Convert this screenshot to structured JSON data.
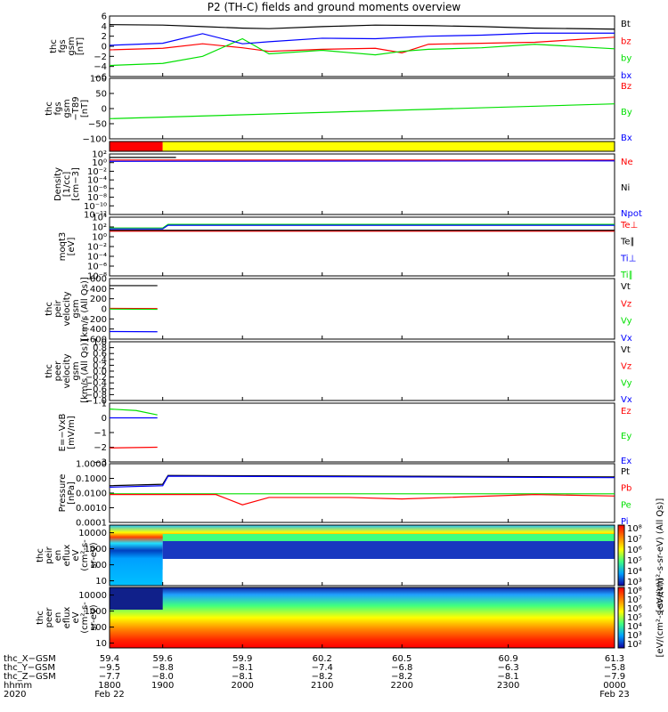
{
  "title": "P2 (TH-C) fields and ground moments overview",
  "colors": {
    "black": "#000000",
    "red": "#ff0000",
    "green": "#00e000",
    "blue": "#0000ff",
    "yellow": "#ffff00"
  },
  "chart_data": [
    {
      "type": "line",
      "panel": "fgs",
      "ylabel": [
        "thc",
        "fgs",
        "gsm",
        "[nT]"
      ],
      "ylim": [
        -6,
        6
      ],
      "yticks": [
        "6",
        "4",
        "2",
        "0",
        "−2",
        "−4",
        "−6"
      ],
      "legend": [
        {
          "name": "Bt",
          "color": "#000000"
        },
        {
          "name": "bz",
          "color": "#ff0000"
        },
        {
          "name": "by",
          "color": "#00e000"
        },
        {
          "name": "bx",
          "color": "#0000ff"
        }
      ],
      "series": [
        {
          "name": "Bt",
          "color": "#000000",
          "x": [
            59.4,
            59.6,
            59.75,
            59.9,
            60.0,
            60.2,
            60.4,
            60.6,
            60.8,
            61.0,
            61.3
          ],
          "y": [
            4.3,
            4.2,
            3.9,
            3.6,
            3.5,
            3.9,
            4.2,
            4.1,
            3.9,
            3.6,
            3.4
          ]
        },
        {
          "name": "bz",
          "color": "#ff0000",
          "x": [
            59.4,
            59.6,
            59.75,
            59.9,
            60.0,
            60.2,
            60.4,
            60.5,
            60.6,
            60.8,
            61.0,
            61.3
          ],
          "y": [
            -0.7,
            -0.4,
            0.5,
            -0.3,
            -1.0,
            -0.6,
            -0.4,
            -1.3,
            0.4,
            0.6,
            0.8,
            1.8
          ]
        },
        {
          "name": "by",
          "color": "#00e000",
          "x": [
            59.4,
            59.6,
            59.75,
            59.9,
            60.0,
            60.2,
            60.4,
            60.5,
            60.6,
            60.8,
            61.0,
            61.3
          ],
          "y": [
            -3.8,
            -3.4,
            -2.0,
            1.5,
            -1.5,
            -0.8,
            -1.7,
            -1.0,
            -0.6,
            -0.3,
            0.4,
            -0.5
          ]
        },
        {
          "name": "bx",
          "color": "#0000ff",
          "x": [
            59.4,
            59.6,
            59.75,
            59.9,
            60.0,
            60.2,
            60.4,
            60.6,
            60.8,
            61.0,
            61.3
          ],
          "y": [
            0.2,
            0.6,
            2.5,
            0.5,
            0.9,
            1.6,
            1.5,
            2.0,
            2.2,
            2.6,
            2.6
          ]
        }
      ]
    },
    {
      "type": "line",
      "panel": "fgs-t89",
      "ylabel": [
        "thc",
        "fgs",
        "gsm",
        "−T89",
        "[nT]"
      ],
      "ylim": [
        -125,
        100
      ],
      "yticks": [
        "100",
        "50",
        "0",
        "−50",
        "−100"
      ],
      "legend": [
        {
          "name": "Bz",
          "color": "#ff0000"
        },
        {
          "name": "By",
          "color": "#00e000"
        },
        {
          "name": "Bx",
          "color": "#0000ff"
        }
      ],
      "series": [
        {
          "name": "By",
          "color": "#00e000",
          "x": [
            59.4,
            61.3
          ],
          "y": [
            -50,
            5
          ]
        }
      ]
    },
    {
      "type": "bar",
      "panel": "mode-bar",
      "segments": [
        {
          "x0": 59.4,
          "x1": 59.6,
          "color": "#ff0000"
        },
        {
          "x0": 59.6,
          "x1": 61.3,
          "color": "#ffff00"
        }
      ]
    },
    {
      "type": "line",
      "panel": "density",
      "ylabel": [
        "Density",
        "[1/cc]",
        "[cm−3]"
      ],
      "ylim": [
        -12,
        2
      ],
      "yscale": "log",
      "yticks": [
        "10²",
        "10⁰",
        "10⁻²",
        "10⁻⁴",
        "10⁻⁶",
        "10⁻⁸",
        "10⁻¹⁰",
        "10⁻¹²"
      ],
      "legend": [
        {
          "name": "Ne",
          "color": "#ff0000"
        },
        {
          "name": "Ni",
          "color": "#000000"
        },
        {
          "name": "Npot",
          "color": "#0000ff"
        }
      ],
      "series": [
        {
          "name": "Ne",
          "color": "#ff0000",
          "x": [
            59.4,
            61.3
          ],
          "y": [
            0.6,
            0.6
          ]
        },
        {
          "name": "Npot",
          "color": "#0000ff",
          "x": [
            59.4,
            61.3
          ],
          "y": [
            0.3,
            0.4
          ]
        },
        {
          "name": "Ni",
          "color": "#000000",
          "x": [
            59.4,
            59.65
          ],
          "y": [
            1.2,
            1.2
          ]
        }
      ]
    },
    {
      "type": "line",
      "panel": "temperature",
      "ylabel": [
        "moqt3",
        "[eV]"
      ],
      "ylim": [
        -8,
        5
      ],
      "yscale": "log",
      "yticks": [
        "10⁴",
        "10²",
        "10⁰",
        "10⁻²",
        "10⁻⁴",
        "10⁻⁶",
        "10⁻⁸"
      ],
      "legend": [
        {
          "name": "Te⊥",
          "color": "#ff0000"
        },
        {
          "name": "Te∥",
          "color": "#000000"
        },
        {
          "name": "Ti⊥",
          "color": "#0000ff"
        },
        {
          "name": "Ti∥",
          "color": "#00e000"
        }
      ],
      "series": [
        {
          "name": "Ti∥",
          "color": "#00e000",
          "x": [
            59.4,
            59.6,
            59.62,
            61.3
          ],
          "y": [
            2.6,
            2.6,
            3.4,
            3.4
          ]
        },
        {
          "name": "Ti⊥",
          "color": "#0000ff",
          "x": [
            59.4,
            59.6,
            59.62,
            61.3
          ],
          "y": [
            2.4,
            2.4,
            3.2,
            3.2
          ]
        },
        {
          "name": "Te⊥",
          "color": "#ff0000",
          "x": [
            59.4,
            61.3
          ],
          "y": [
            1.9,
            1.9
          ]
        },
        {
          "name": "Te∥",
          "color": "#000000",
          "x": [
            59.4,
            61.3
          ],
          "y": [
            2.1,
            2.1
          ]
        }
      ]
    },
    {
      "type": "line",
      "panel": "peir-velocity",
      "ylabel": [
        "thc",
        "peir",
        "velocity",
        "gsm",
        "[km/s (All Qs)]"
      ],
      "ylim": [
        -600,
        600
      ],
      "yticks": [
        "600",
        "400",
        "200",
        "0",
        "−200",
        "−400",
        "−600"
      ],
      "legend": [
        {
          "name": "Vt",
          "color": "#000000"
        },
        {
          "name": "Vz",
          "color": "#ff0000"
        },
        {
          "name": "Vy",
          "color": "#00e000"
        },
        {
          "name": "Vx",
          "color": "#0000ff"
        }
      ],
      "series": [
        {
          "name": "Vt",
          "color": "#000000",
          "x": [
            59.4,
            59.58
          ],
          "y": [
            460,
            460
          ]
        },
        {
          "name": "Vz",
          "color": "#ff0000",
          "x": [
            59.4,
            59.58
          ],
          "y": [
            10,
            5
          ]
        },
        {
          "name": "Vy",
          "color": "#00e000",
          "x": [
            59.4,
            59.58
          ],
          "y": [
            -5,
            -10
          ]
        },
        {
          "name": "Vx",
          "color": "#0000ff",
          "x": [
            59.4,
            59.58
          ],
          "y": [
            -450,
            -455
          ]
        }
      ]
    },
    {
      "type": "line",
      "panel": "peer-velocity",
      "ylabel": [
        "thc",
        "peer",
        "velocity",
        "gsm",
        "[km/s (All Qs)]"
      ],
      "ylim": [
        -1,
        1
      ],
      "yticks": [
        "1.0",
        "0.8",
        "0.6",
        "0.4",
        "0.2",
        "0.0",
        "−0.2",
        "−0.4",
        "−0.6",
        "−0.8",
        "−1.0"
      ],
      "legend": [
        {
          "name": "Vt",
          "color": "#000000"
        },
        {
          "name": "Vz",
          "color": "#ff0000"
        },
        {
          "name": "Vy",
          "color": "#00e000"
        },
        {
          "name": "Vx",
          "color": "#0000ff"
        }
      ],
      "series": []
    },
    {
      "type": "line",
      "panel": "e-field",
      "ylabel": [
        "E=−VxB",
        "[mV/m]"
      ],
      "ylim": [
        -3,
        1
      ],
      "yticks": [
        "1",
        "0",
        "−1",
        "−2",
        "−3"
      ],
      "legend": [
        {
          "name": "Ez",
          "color": "#ff0000"
        },
        {
          "name": "Ey",
          "color": "#00e000"
        },
        {
          "name": "Ex",
          "color": "#0000ff"
        }
      ],
      "series": [
        {
          "name": "Ey",
          "color": "#00e000",
          "x": [
            59.4,
            59.5,
            59.58
          ],
          "y": [
            0.6,
            0.5,
            0.2
          ]
        },
        {
          "name": "Ex",
          "color": "#0000ff",
          "x": [
            59.4,
            59.58
          ],
          "y": [
            0.0,
            0.0
          ]
        },
        {
          "name": "Ez",
          "color": "#ff0000",
          "x": [
            59.4,
            59.58
          ],
          "y": [
            -2.05,
            -2.0
          ]
        }
      ]
    },
    {
      "type": "line",
      "panel": "pressure",
      "ylabel": [
        "Pressure",
        "[nPa]"
      ],
      "ylim": [
        -4,
        0
      ],
      "yscale": "log",
      "yticks": [
        "1.0000",
        "0.1000",
        "0.0100",
        "0.0010",
        "0.0001"
      ],
      "legend": [
        {
          "name": "Pt",
          "color": "#000000"
        },
        {
          "name": "Pb",
          "color": "#ff0000"
        },
        {
          "name": "Pe",
          "color": "#00e000"
        },
        {
          "name": "Pi",
          "color": "#0000ff"
        }
      ],
      "series": [
        {
          "name": "Pt",
          "color": "#000000",
          "x": [
            59.4,
            59.6,
            59.62,
            61.3
          ],
          "y": [
            -1.5,
            -1.4,
            -0.8,
            -0.9
          ]
        },
        {
          "name": "Pi",
          "color": "#0000ff",
          "x": [
            59.4,
            59.6,
            59.62,
            61.3
          ],
          "y": [
            -1.6,
            -1.5,
            -0.85,
            -0.95
          ]
        },
        {
          "name": "Pe",
          "color": "#00e000",
          "x": [
            59.4,
            61.3
          ],
          "y": [
            -2.05,
            -2.05
          ]
        },
        {
          "name": "Pb",
          "color": "#ff0000",
          "x": [
            59.4,
            59.8,
            59.9,
            60.0,
            60.3,
            60.5,
            61.0,
            61.3
          ],
          "y": [
            -2.1,
            -2.1,
            -2.8,
            -2.3,
            -2.3,
            -2.4,
            -2.1,
            -2.2
          ]
        }
      ]
    },
    {
      "type": "heatmap",
      "panel": "peir-spectrogram",
      "ylabel": [
        "thc",
        "peir",
        "en",
        "eflux",
        "eV",
        "(cm²-s-",
        "sr-eV)"
      ],
      "yscale": "log",
      "ylim": [
        5,
        30000
      ],
      "yticks": [
        "10000",
        "1000",
        "100",
        "10"
      ]
    },
    {
      "type": "heatmap",
      "panel": "peer-spectrogram",
      "ylabel": [
        "thc",
        "peer",
        "en",
        "eflux",
        "eV",
        "(cm²-s-",
        "sr-eV)"
      ],
      "yscale": "log",
      "ylim": [
        5,
        30000
      ],
      "yticks": [
        "10000",
        "1000",
        "100",
        "10"
      ]
    }
  ],
  "colorbars": [
    {
      "ticks": [
        "10⁸",
        "10⁷",
        "10⁶",
        "10⁵",
        "10⁴",
        "10³"
      ],
      "label": "[eV/(cm²-s-sr-eV) (All Qs)]"
    },
    {
      "ticks": [
        "10⁸",
        "10⁷",
        "10⁶",
        "10⁵",
        "10⁴",
        "10³",
        "10²"
      ],
      "label": "[eV/(cm²-s-sr-eV)]"
    }
  ],
  "xaxis": {
    "xlim": [
      59.4,
      61.3
    ],
    "rows": [
      {
        "label": "thc_X−GSM",
        "values": [
          "59.4",
          "59.6",
          "59.9",
          "60.2",
          "60.5",
          "60.9",
          "61.3"
        ]
      },
      {
        "label": "thc_Y−GSM",
        "values": [
          "−9.5",
          "−8.8",
          "−8.1",
          "−7.4",
          "−6.8",
          "−6.3",
          "−5.8"
        ]
      },
      {
        "label": "thc_Z−GSM",
        "values": [
          "−7.7",
          "−8.0",
          "−8.1",
          "−8.2",
          "−8.2",
          "−8.1",
          "−7.9"
        ]
      },
      {
        "label": "hhmm",
        "values": [
          "1800",
          "1900",
          "2000",
          "2100",
          "2200",
          "2300",
          "0000"
        ]
      },
      {
        "label": "2020",
        "values": [
          "Feb 22",
          "",
          "",
          "",
          "",
          "",
          "Feb 23"
        ]
      }
    ]
  }
}
